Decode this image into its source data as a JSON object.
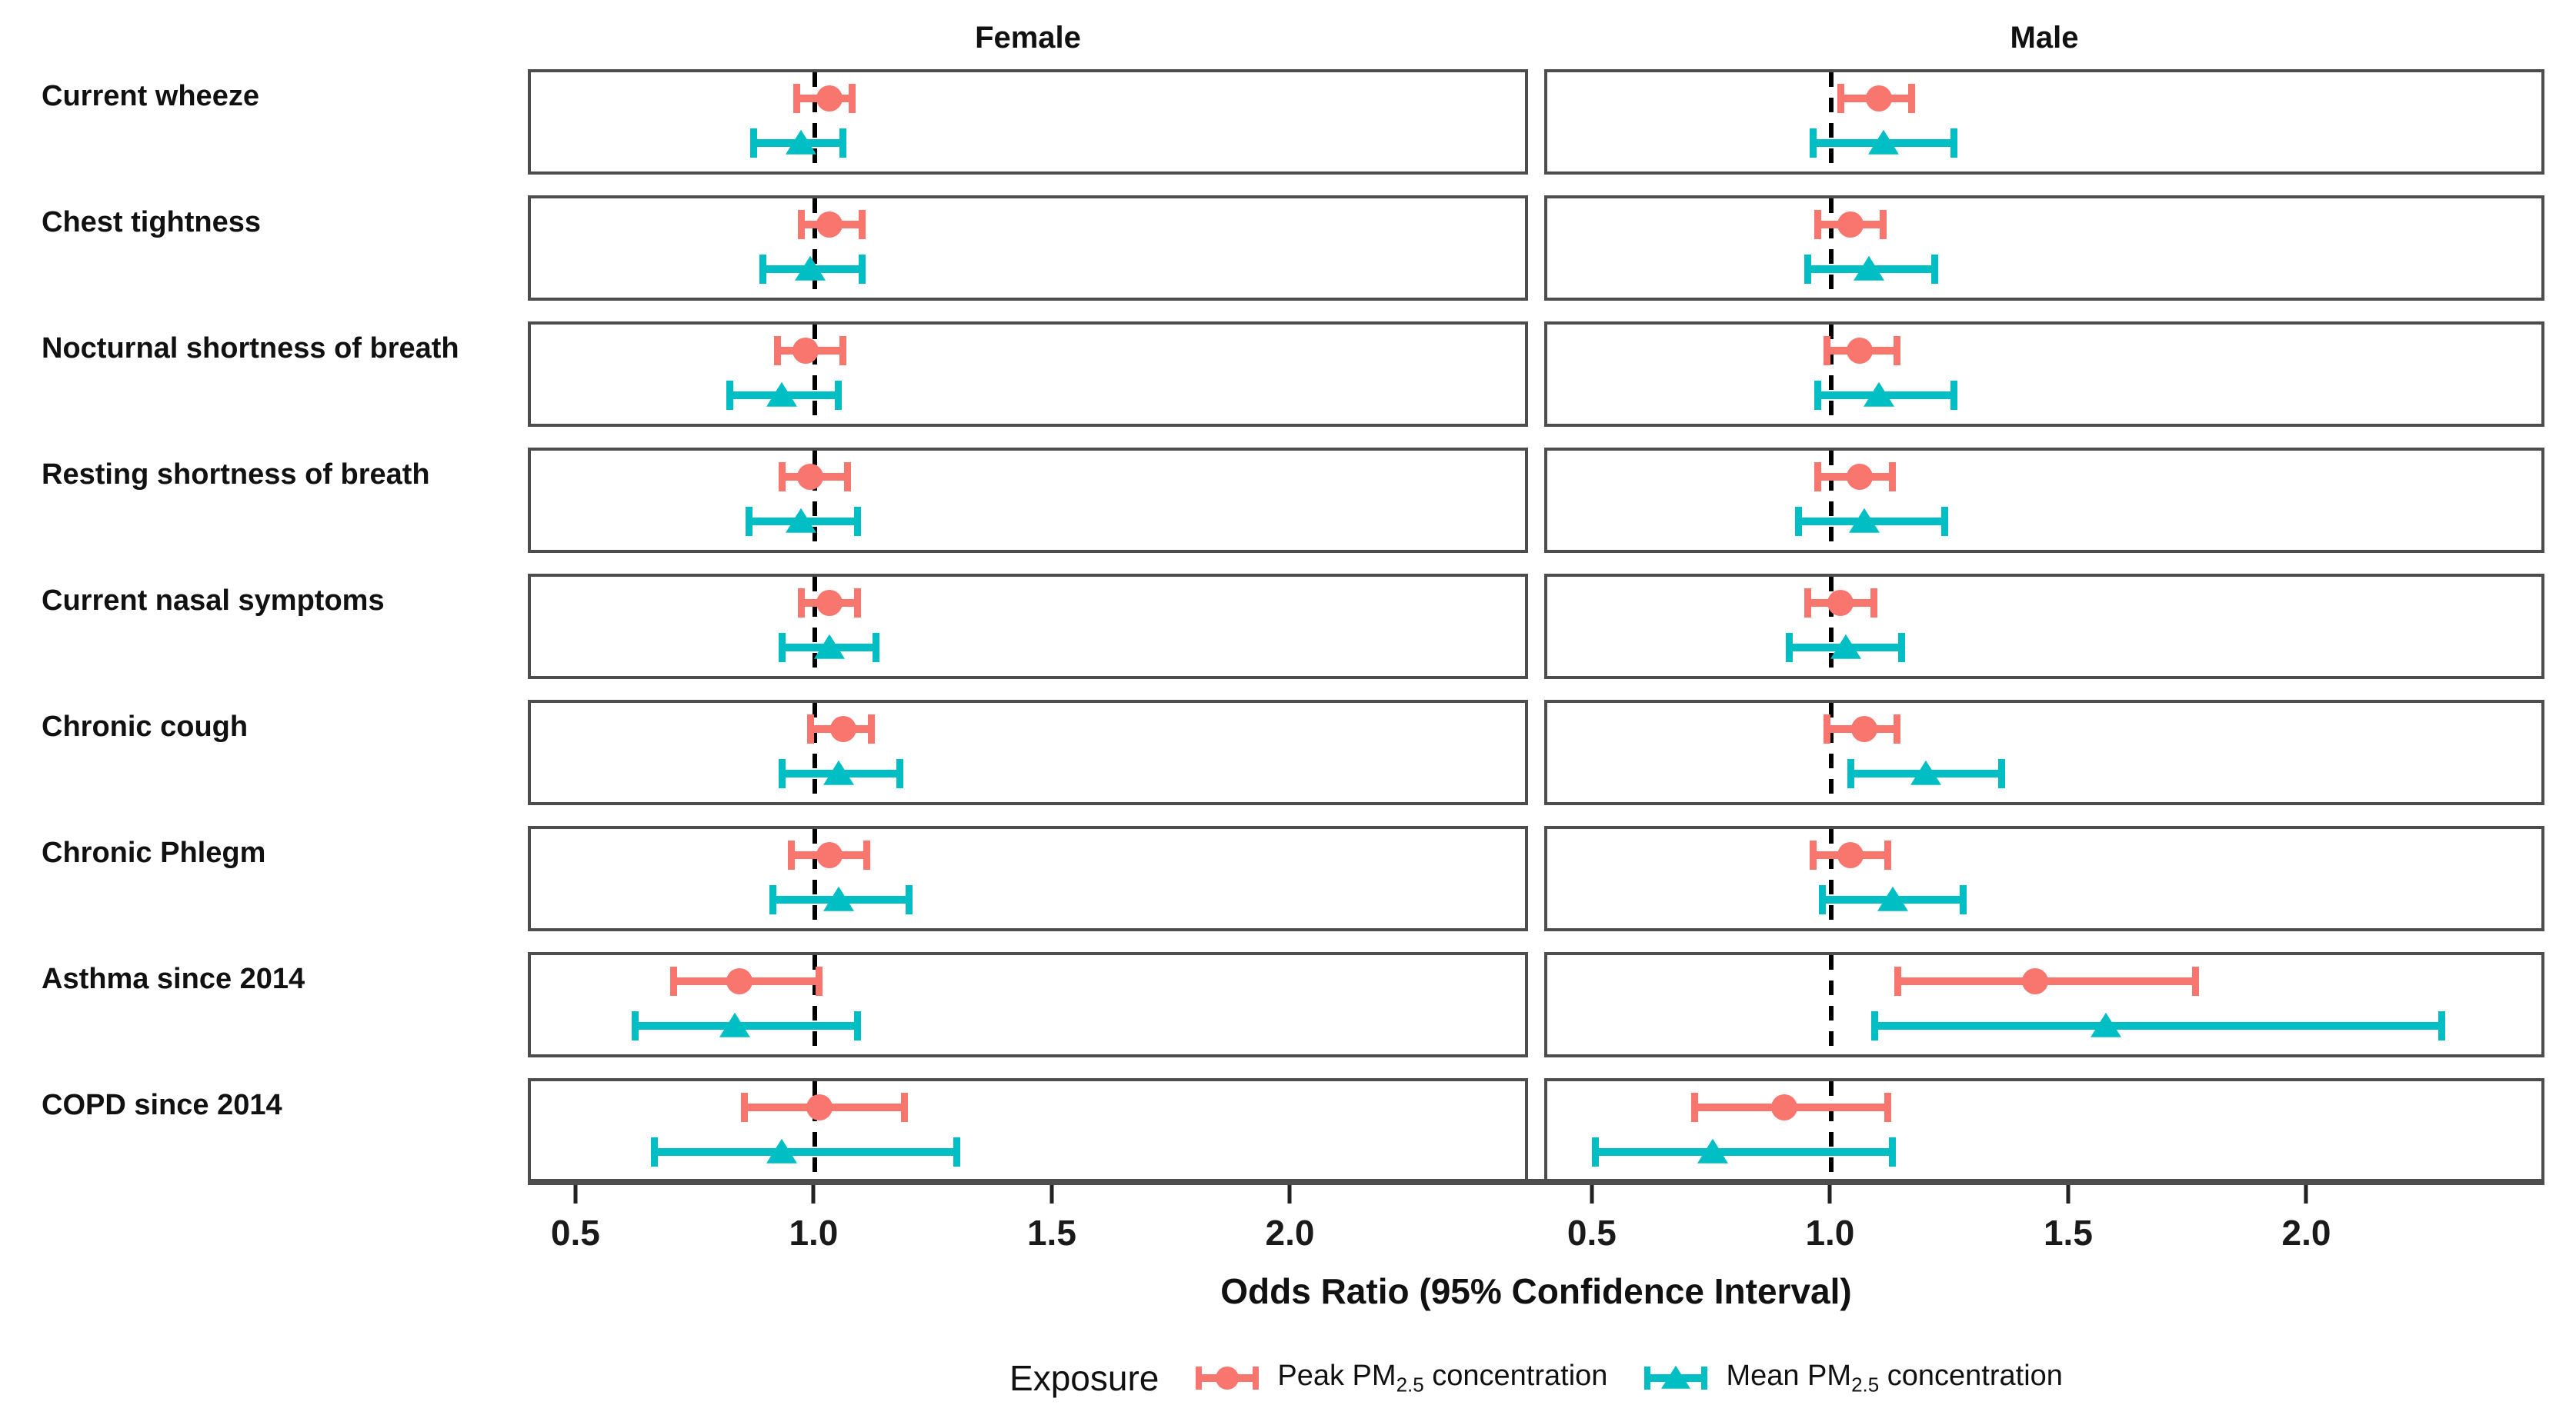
{
  "facet_titles": {
    "female": "Female",
    "male": "Male"
  },
  "axis": {
    "title": "Odds Ratio (95% Confidence Interval)",
    "tick_values": [
      0.5,
      1.0,
      1.5,
      2.0
    ],
    "tick_labels": [
      "0.5",
      "1.0",
      "1.5",
      "2.0"
    ],
    "range_min": 0.4,
    "range_max": 2.5,
    "reference_line": 1.0
  },
  "legend": {
    "title": "Exposure",
    "items": [
      {
        "prefix": "Peak PM",
        "sub": "2.5",
        "suffix": " concentration",
        "color": "#F8766D",
        "marker": "circle"
      },
      {
        "prefix": "Mean PM",
        "sub": "2.5",
        "suffix": " concentration",
        "color": "#00BFC4",
        "marker": "triangle"
      }
    ]
  },
  "colors": {
    "peak": "#F8766D",
    "mean": "#00BFC4",
    "panel_border": "#4d4d4d",
    "axis_line": "#4d4d4d",
    "tick": "#222222",
    "reference_line": "#000000",
    "text": "#111111"
  },
  "chart_data": {
    "type": "forest",
    "title": "",
    "xlabel": "Odds Ratio (95% Confidence Interval)",
    "facets": [
      "Female",
      "Male"
    ],
    "series": [
      {
        "name": "Peak PM2.5 concentration",
        "marker": "circle",
        "color": "#F8766D"
      },
      {
        "name": "Mean PM2.5 concentration",
        "marker": "triangle",
        "color": "#00BFC4"
      }
    ],
    "xlim": [
      0.4,
      2.5
    ],
    "reference_line": 1.0,
    "grid": false,
    "legend_position": "bottom",
    "rows": [
      {
        "outcome": "Current wheeze",
        "female": {
          "peak": {
            "or": 1.03,
            "low": 0.96,
            "high": 1.08
          },
          "mean": {
            "or": 0.97,
            "low": 0.87,
            "high": 1.06
          }
        },
        "male": {
          "peak": {
            "or": 1.1,
            "low": 1.02,
            "high": 1.17
          },
          "mean": {
            "or": 1.11,
            "low": 0.96,
            "high": 1.26
          }
        }
      },
      {
        "outcome": "Chest tightness",
        "female": {
          "peak": {
            "or": 1.03,
            "low": 0.97,
            "high": 1.1
          },
          "mean": {
            "or": 0.99,
            "low": 0.89,
            "high": 1.1
          }
        },
        "male": {
          "peak": {
            "or": 1.04,
            "low": 0.97,
            "high": 1.11
          },
          "mean": {
            "or": 1.08,
            "low": 0.95,
            "high": 1.22
          }
        }
      },
      {
        "outcome": "Nocturnal shortness of breath",
        "female": {
          "peak": {
            "or": 0.98,
            "low": 0.92,
            "high": 1.06
          },
          "mean": {
            "or": 0.93,
            "low": 0.82,
            "high": 1.05
          }
        },
        "male": {
          "peak": {
            "or": 1.06,
            "low": 0.99,
            "high": 1.14
          },
          "mean": {
            "or": 1.1,
            "low": 0.97,
            "high": 1.26
          }
        }
      },
      {
        "outcome": "Resting shortness of breath",
        "female": {
          "peak": {
            "or": 0.99,
            "low": 0.93,
            "high": 1.07
          },
          "mean": {
            "or": 0.97,
            "low": 0.86,
            "high": 1.09
          }
        },
        "male": {
          "peak": {
            "or": 1.06,
            "low": 0.97,
            "high": 1.13
          },
          "mean": {
            "or": 1.07,
            "low": 0.93,
            "high": 1.24
          }
        }
      },
      {
        "outcome": "Current nasal symptoms",
        "female": {
          "peak": {
            "or": 1.03,
            "low": 0.97,
            "high": 1.09
          },
          "mean": {
            "or": 1.03,
            "low": 0.93,
            "high": 1.13
          }
        },
        "male": {
          "peak": {
            "or": 1.02,
            "low": 0.95,
            "high": 1.09
          },
          "mean": {
            "or": 1.03,
            "low": 0.91,
            "high": 1.15
          }
        }
      },
      {
        "outcome": "Chronic cough",
        "female": {
          "peak": {
            "or": 1.06,
            "low": 0.99,
            "high": 1.12
          },
          "mean": {
            "or": 1.05,
            "low": 0.93,
            "high": 1.18
          }
        },
        "male": {
          "peak": {
            "or": 1.07,
            "low": 0.99,
            "high": 1.14
          },
          "mean": {
            "or": 1.2,
            "low": 1.04,
            "high": 1.36
          }
        }
      },
      {
        "outcome": "Chronic Phlegm",
        "female": {
          "peak": {
            "or": 1.03,
            "low": 0.95,
            "high": 1.11
          },
          "mean": {
            "or": 1.05,
            "low": 0.91,
            "high": 1.2
          }
        },
        "male": {
          "peak": {
            "or": 1.04,
            "low": 0.96,
            "high": 1.12
          },
          "mean": {
            "or": 1.13,
            "low": 0.98,
            "high": 1.28
          }
        }
      },
      {
        "outcome": "Asthma since 2014",
        "female": {
          "peak": {
            "or": 0.84,
            "low": 0.7,
            "high": 1.01
          },
          "mean": {
            "or": 0.83,
            "low": 0.62,
            "high": 1.09
          }
        },
        "male": {
          "peak": {
            "or": 1.43,
            "low": 1.14,
            "high": 1.77
          },
          "mean": {
            "or": 1.58,
            "low": 1.09,
            "high": 2.29
          }
        }
      },
      {
        "outcome": "COPD since 2014",
        "female": {
          "peak": {
            "or": 1.01,
            "low": 0.85,
            "high": 1.19
          },
          "mean": {
            "or": 0.93,
            "low": 0.66,
            "high": 1.3
          }
        },
        "male": {
          "peak": {
            "or": 0.9,
            "low": 0.71,
            "high": 1.12
          },
          "mean": {
            "or": 0.75,
            "low": 0.5,
            "high": 1.13
          }
        }
      }
    ]
  }
}
